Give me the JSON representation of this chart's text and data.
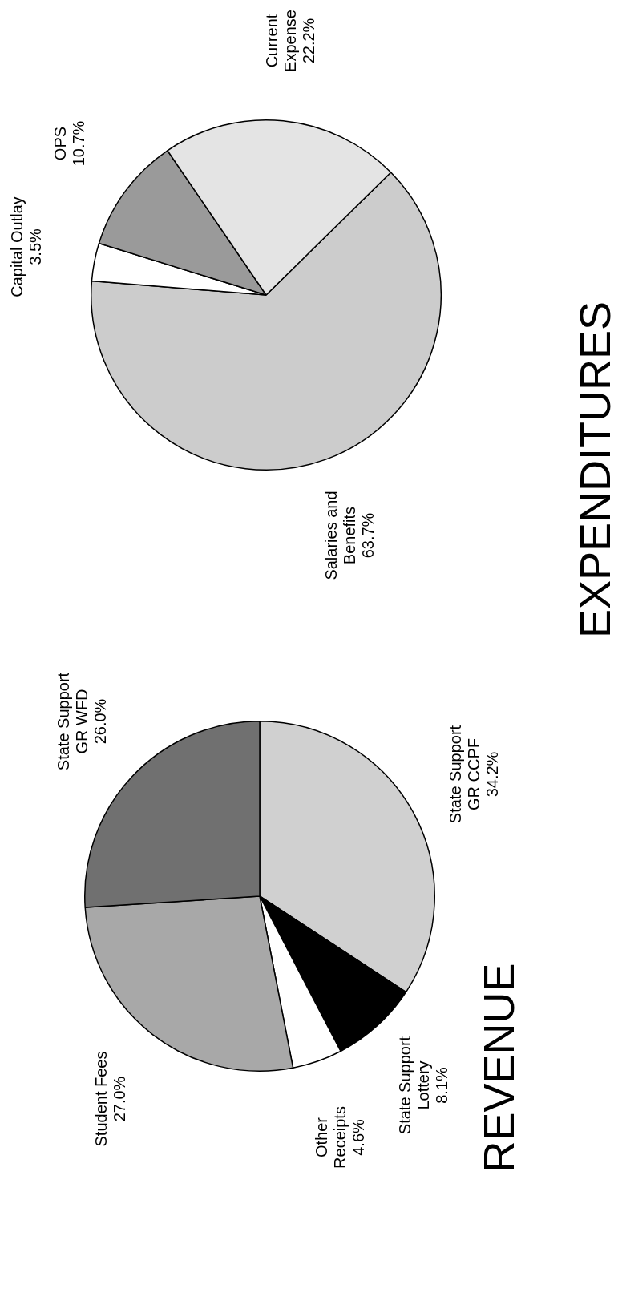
{
  "chart_data": [
    {
      "type": "pie",
      "title": "REVENUE",
      "categories": [
        "State Support GR CCPF",
        "State Support Lottery",
        "Other Receipts",
        "Student Fees",
        "State Support GR WFD"
      ],
      "values": [
        34.2,
        8.1,
        4.6,
        27.0,
        26.0
      ],
      "colors": [
        "#d0d0d0",
        "#000000",
        "#ffffff",
        "#a8a8a8",
        "#707070"
      ],
      "value_labels": [
        "34.2%",
        "8.1%",
        "4.6%",
        "27.0%",
        "26.0%"
      ]
    },
    {
      "type": "pie",
      "title": "EXPENDITURES",
      "categories": [
        "Salaries and Benefits",
        "Capital Outlay",
        "OPS",
        "Current Expense"
      ],
      "values": [
        63.7,
        3.5,
        10.7,
        22.2
      ],
      "colors": [
        "#cccccc",
        "#ffffff",
        "#9a9a9a",
        "#e4e4e4"
      ],
      "value_labels": [
        "63.7%",
        "3.5%",
        "10.7%",
        "22.2%"
      ]
    }
  ]
}
